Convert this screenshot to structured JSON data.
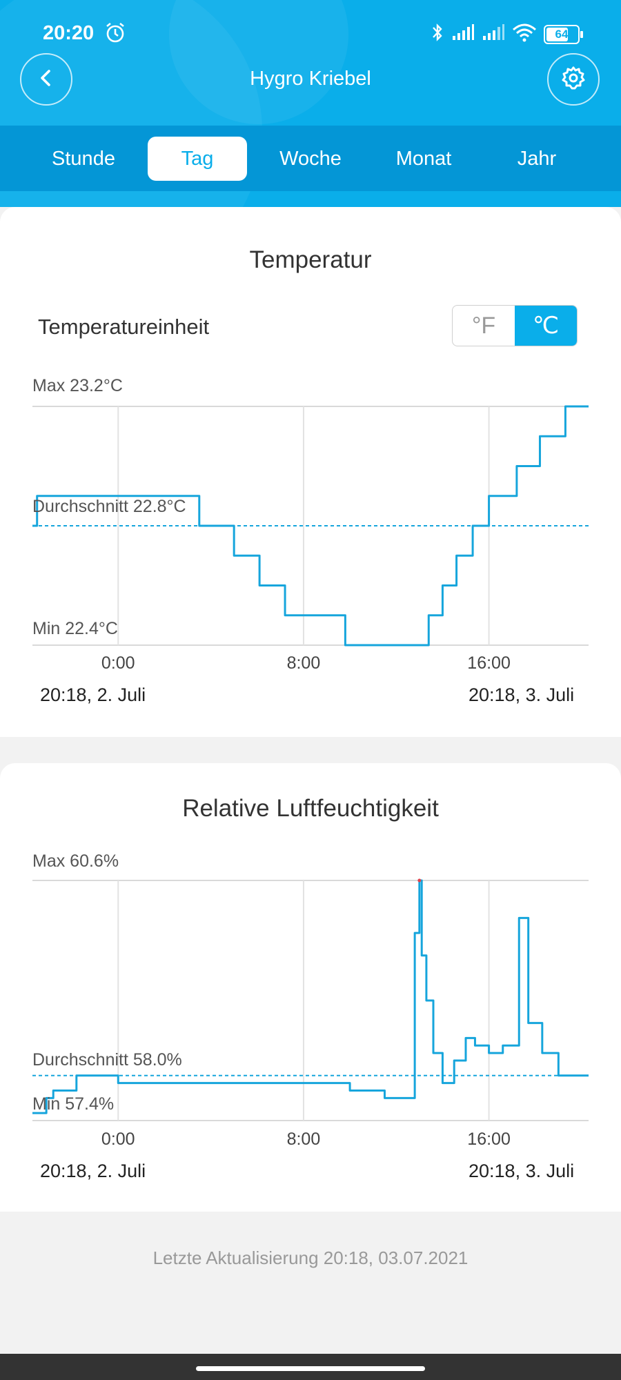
{
  "status_bar": {
    "time": "20:20",
    "battery": "64"
  },
  "header": {
    "title": "Hygro Kriebel"
  },
  "tabs": [
    {
      "label": "Stunde",
      "active": false
    },
    {
      "label": "Tag",
      "active": true
    },
    {
      "label": "Woche",
      "active": false
    },
    {
      "label": "Monat",
      "active": false
    },
    {
      "label": "Jahr",
      "active": false
    }
  ],
  "temperature": {
    "title": "Temperatur",
    "unit_label": "Temperatureinheit",
    "unit_f": "°F",
    "unit_c": "℃",
    "selected_unit": "℃",
    "max_label": "Max 23.2°C",
    "avg_label": "Durchschnitt 22.8°C",
    "min_label": "Min 22.4°C",
    "start_date": "20:18,  2. Juli",
    "end_date": "20:18,  3. Juli"
  },
  "humidity": {
    "title": "Relative Luftfeuchtigkeit",
    "max_label": "Max 60.6%",
    "avg_label": "Durchschnitt 58.0%",
    "min_label": "Min 57.4%",
    "start_date": "20:18,  2. Juli",
    "end_date": "20:18,  3. Juli"
  },
  "chart_data": [
    {
      "type": "line",
      "title": "Temperatur",
      "unit": "°C",
      "x_ticks": [
        "0:00",
        "8:00",
        "16:00"
      ],
      "x_domain": [
        -3.7,
        20.3
      ],
      "ylim": [
        22.4,
        23.2
      ],
      "average": 22.8,
      "grid": true,
      "color": "#16a5dc",
      "series": [
        {
          "x": [
            -3.7,
            -3.5,
            -3.3,
            3.4,
            3.5,
            4.2,
            4.3,
            5.0,
            6.1,
            7.2,
            9.3,
            9.8,
            10.5,
            11.0,
            12.8,
            13.4,
            14.0,
            14.6,
            15.3,
            16.0,
            17.2,
            18.2,
            19.3,
            20.3
          ],
          "y": [
            22.8,
            22.9,
            22.9,
            22.9,
            22.8,
            22.8,
            22.8,
            22.7,
            22.6,
            22.5,
            22.5,
            22.4,
            22.4,
            22.4,
            22.4,
            22.5,
            22.6,
            22.7,
            22.8,
            22.9,
            23.0,
            23.1,
            23.2,
            23.2
          ]
        }
      ]
    },
    {
      "type": "line",
      "title": "Relative Luftfeuchtigkeit",
      "unit": "%",
      "x_ticks": [
        "0:00",
        "8:00",
        "16:00"
      ],
      "x_domain": [
        -3.7,
        20.3
      ],
      "ylim": [
        57.4,
        60.6
      ],
      "average": 58.0,
      "grid": true,
      "color": "#16a5dc",
      "highlight_color": "#e0434d",
      "series": [
        {
          "x": [
            -3.7,
            -3.1,
            -2.8,
            -1.8,
            0.0,
            4.3,
            8.0,
            10.0,
            11.5,
            12.4,
            12.8,
            13.0,
            13.1,
            13.3,
            13.6,
            14.0,
            14.5,
            15.0,
            15.4,
            16.0,
            16.6,
            17.3,
            17.7,
            18.3,
            19.0,
            20.3
          ],
          "y": [
            57.5,
            57.7,
            57.8,
            58.0,
            57.9,
            57.9,
            57.9,
            57.8,
            57.7,
            57.7,
            59.9,
            60.6,
            59.6,
            59.0,
            58.3,
            57.9,
            58.2,
            58.5,
            58.4,
            58.3,
            58.4,
            60.1,
            58.7,
            58.3,
            58.0,
            58.0
          ]
        }
      ]
    }
  ]
}
